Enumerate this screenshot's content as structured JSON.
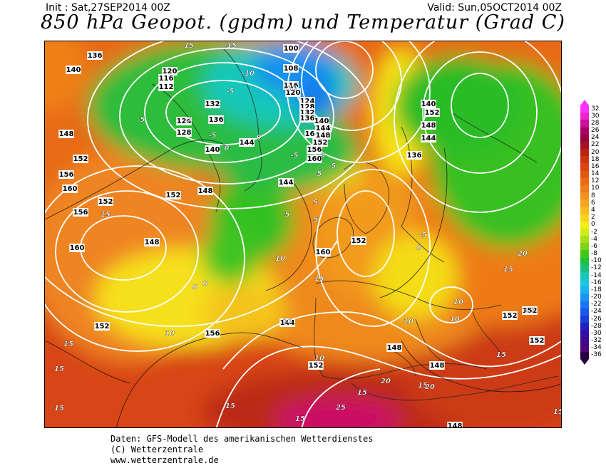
{
  "header": {
    "init": "Init : Sat,27SEP2014 00Z",
    "valid": "Valid: Sun,05OCT2014 00Z",
    "title": "850 hPa Geopot. (gpdm) und Temperatur (Grad C)"
  },
  "colorbar": {
    "ticks": [
      "32",
      "30",
      "28",
      "26",
      "24",
      "22",
      "20",
      "18",
      "16",
      "14",
      "12",
      "10",
      "8",
      "6",
      "4",
      "2",
      "0",
      "-2",
      "-4",
      "-6",
      "-8",
      "-10",
      "-12",
      "-14",
      "-16",
      "-18",
      "-20",
      "-22",
      "-24",
      "-26",
      "-28",
      "-30",
      "-32",
      "-34",
      "-36"
    ],
    "colors": [
      "#ff33ff",
      "#ee22cc",
      "#cc1199",
      "#aa0066",
      "#990044",
      "#aa1122",
      "#bb2211",
      "#cc3311",
      "#dd4411",
      "#e05a11",
      "#ee6a11",
      "#f07c1a",
      "#f4901e",
      "#f6a41e",
      "#f8bc1e",
      "#f8d41c",
      "#f6ec18",
      "#d0ec18",
      "#a8e018",
      "#80d418",
      "#44c818",
      "#20c040",
      "#18c080",
      "#18c8b0",
      "#18c8dc",
      "#18b4f0",
      "#1894f4",
      "#1874f4",
      "#1858ec",
      "#1840d8",
      "#2020c0",
      "#3010a8",
      "#400890",
      "#500878",
      "#280040"
    ]
  },
  "map": {
    "geopotential_labels": [
      "136",
      "140",
      "120",
      "116",
      "112",
      "124",
      "128",
      "132",
      "136",
      "140",
      "144",
      "148",
      "152",
      "156",
      "160",
      "164",
      "108",
      "100",
      "116",
      "120",
      "124",
      "128",
      "132",
      "136",
      "140",
      "144",
      "148",
      "152",
      "156",
      "160",
      "152",
      "148",
      "144",
      "140",
      "136",
      "144",
      "148",
      "152",
      "156",
      "152",
      "160",
      "160",
      "156",
      "152",
      "148",
      "144",
      "152",
      "148",
      "152",
      "148",
      "148",
      "152",
      "152",
      "152"
    ],
    "temperature_labels": [
      "-15",
      "-15",
      "-10",
      "-10",
      "-5",
      "-5",
      "-5",
      "-5",
      "-5",
      "0",
      "0",
      "5",
      "5",
      "5",
      "5",
      "10",
      "10",
      "10",
      "10",
      "10",
      "15",
      "15",
      "15",
      "15",
      "15",
      "15",
      "15",
      "15",
      "15",
      "15",
      "20",
      "20",
      "25",
      "0",
      "0",
      "-5",
      "0",
      "5",
      "5",
      "10",
      "15",
      "15",
      "10",
      "15",
      "20"
    ]
  },
  "footer": {
    "line1": "Daten: GFS-Modell des amerikanischen Wetterdienstes",
    "line2": "(C) Wetterzentrale",
    "line3": "www.wetterzentrale.de"
  }
}
